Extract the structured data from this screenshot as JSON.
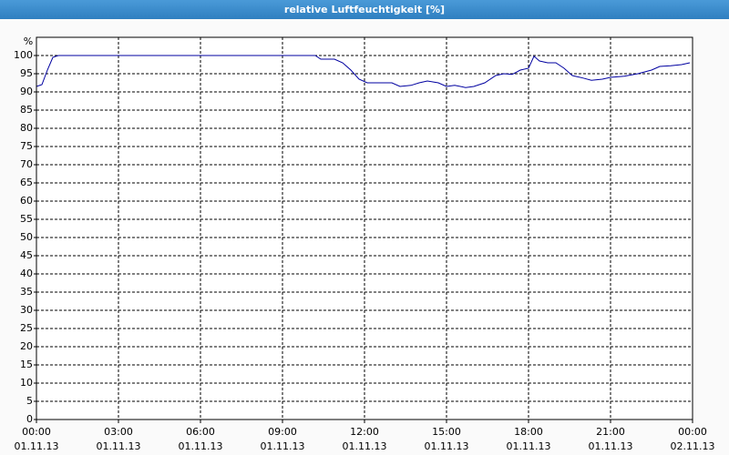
{
  "chart_data": {
    "type": "line",
    "title": "relative Luftfeuchtigkeit [%]",
    "y_unit": "%",
    "x": [
      0,
      0.2,
      0.4,
      0.6,
      0.8,
      10.2,
      10.4,
      10.9,
      11.2,
      11.5,
      11.8,
      12.1,
      12.5,
      13.0,
      13.3,
      13.7,
      14.0,
      14.3,
      14.7,
      15.0,
      15.3,
      15.7,
      16.0,
      16.4,
      16.8,
      17.1,
      17.4,
      17.7,
      18.0,
      18.2,
      18.4,
      18.7,
      19.0,
      19.3,
      19.6,
      20.0,
      20.3,
      20.7,
      21.0,
      21.5,
      22.0,
      22.5,
      22.8,
      23.2,
      23.6,
      23.9
    ],
    "series": [
      {
        "color": "#0000a0",
        "values": [
          91.5,
          92,
          96,
          99.5,
          100,
          100,
          99,
          99,
          98,
          96,
          93.5,
          92.5,
          92.5,
          92.5,
          91.5,
          91.8,
          92.5,
          93,
          92.5,
          91.5,
          91.8,
          91.2,
          91.5,
          92.5,
          94.5,
          95,
          94.8,
          96,
          96.5,
          99.8,
          98.5,
          98,
          98,
          96.5,
          94.5,
          93.8,
          93.2,
          93.5,
          94,
          94.3,
          95,
          96,
          97,
          97.2,
          97.5,
          98
        ]
      }
    ],
    "xlim": [
      0,
      24
    ],
    "xticks": [
      {
        "value": 0,
        "label": "00:00",
        "date": "01.11.13"
      },
      {
        "value": 3,
        "label": "03:00",
        "date": "01.11.13"
      },
      {
        "value": 6,
        "label": "06:00",
        "date": "01.11.13"
      },
      {
        "value": 9,
        "label": "09:00",
        "date": "01.11.13"
      },
      {
        "value": 12,
        "label": "12:00",
        "date": "01.11.13"
      },
      {
        "value": 15,
        "label": "15:00",
        "date": "01.11.13"
      },
      {
        "value": 18,
        "label": "18:00",
        "date": "01.11.13"
      },
      {
        "value": 21,
        "label": "21:00",
        "date": "01.11.13"
      },
      {
        "value": 24,
        "label": "00:00",
        "date": "02.11.13"
      }
    ],
    "ylim": [
      0,
      100
    ],
    "yticks": [
      0,
      5,
      10,
      15,
      20,
      25,
      30,
      35,
      40,
      45,
      50,
      55,
      60,
      65,
      70,
      75,
      80,
      85,
      90,
      95,
      100
    ],
    "grid": true
  }
}
